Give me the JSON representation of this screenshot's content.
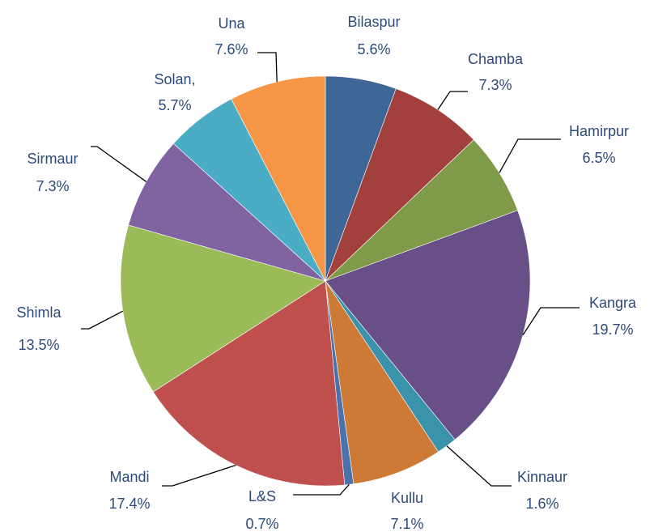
{
  "chart_data": {
    "type": "pie",
    "categories": [
      "Bilaspur",
      "Chamba",
      "Hamirpur",
      "Kangra",
      "Kinnaur",
      "Kullu",
      "L&S",
      "Mandi",
      "Shimla",
      "Sirmaur",
      "Solan,",
      "Una"
    ],
    "values": [
      5.6,
      7.3,
      6.5,
      19.7,
      1.6,
      7.1,
      0.7,
      17.4,
      13.5,
      7.3,
      5.7,
      7.6
    ],
    "value_labels": [
      "5.6%",
      "7.3%",
      "6.5%",
      "19.7%",
      "1.6%",
      "7.1%",
      "0.7%",
      "17.4%",
      "13.5%",
      "7.3%",
      "5.7%",
      "7.6%"
    ],
    "colors": [
      "#3e6797",
      "#a1403d",
      "#7f9a48",
      "#684f87",
      "#3a93aa",
      "#cc7a36",
      "#4a72ad",
      "#c0504d",
      "#9bbb59",
      "#8064a2",
      "#4bacc6",
      "#f79646"
    ]
  }
}
